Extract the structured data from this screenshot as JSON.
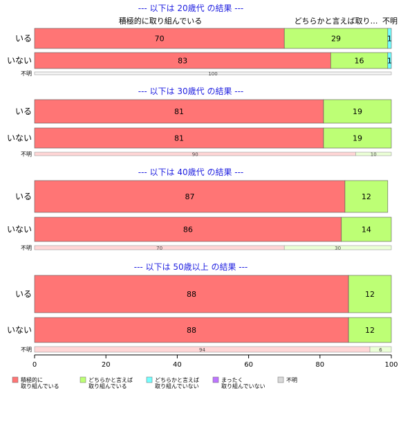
{
  "colors": {
    "積極的に取り組んでいる": "#ff7575",
    "どちらかと言えば取り組んでいる": "#bdff75",
    "どちらかと言えば取り組んでいない": "#75ffff",
    "まったく取り組んでいない": "#bd75ff",
    "不明": "#d9d9d9"
  },
  "header_labels": [
    "積極的に取り組んでいる",
    "どちらかと言えば取り…",
    "不明"
  ],
  "x_ticks": [
    "0",
    "20",
    "40",
    "60",
    "80",
    "100"
  ],
  "legend": [
    {
      "key": "積極的に取り組んでいる",
      "lines": [
        "積極的に",
        "取り組んでいる"
      ]
    },
    {
      "key": "どちらかと言えば取り組んでいる",
      "lines": [
        "どちらかと言えば",
        "取り組んでいる"
      ]
    },
    {
      "key": "どちらかと言えば取り組んでいない",
      "lines": [
        "どちらかと言えば",
        "取り組んでいない"
      ]
    },
    {
      "key": "まったく取り組んでいない",
      "lines": [
        "まったく",
        "取り組んでいない"
      ]
    },
    {
      "key": "不明",
      "lines": [
        "不明"
      ]
    }
  ],
  "chart_data": {
    "type": "bar",
    "orientation": "horizontal",
    "stacked": true,
    "xlim": [
      0,
      100
    ],
    "categories": [
      "積極的に取り組んでいる",
      "どちらかと言えば取り組んでいる",
      "どちらかと言えば取り組んでいない",
      "まったく取り組んでいない",
      "不明"
    ],
    "panels": [
      {
        "title": "--- 以下は 20歳代 の結果 ---",
        "rows": [
          {
            "label": "いる",
            "values": [
              70,
              29,
              1,
              0,
              0
            ]
          },
          {
            "label": "いない",
            "values": [
              83,
              16,
              1,
              0,
              0
            ]
          },
          {
            "label": "不明",
            "values": [
              0,
              0,
              0,
              0,
              100
            ]
          }
        ]
      },
      {
        "title": "--- 以下は 30歳代 の結果 ---",
        "rows": [
          {
            "label": "いる",
            "values": [
              81,
              19,
              0,
              0,
              0
            ]
          },
          {
            "label": "いない",
            "values": [
              81,
              19,
              0,
              0,
              0
            ]
          },
          {
            "label": "不明",
            "values": [
              90,
              10,
              0,
              0,
              0
            ]
          }
        ]
      },
      {
        "title": "--- 以下は 40歳代 の結果 ---",
        "rows": [
          {
            "label": "いる",
            "values": [
              87,
              12,
              0,
              0,
              0
            ]
          },
          {
            "label": "いない",
            "values": [
              86,
              14,
              0,
              0,
              0
            ]
          },
          {
            "label": "不明",
            "values": [
              70,
              30,
              0,
              0,
              0
            ]
          }
        ]
      },
      {
        "title": "--- 以下は 50歳以上 の結果 ---",
        "rows": [
          {
            "label": "いる",
            "values": [
              88,
              12,
              0,
              0,
              0
            ]
          },
          {
            "label": "いない",
            "values": [
              88,
              12,
              0,
              0,
              0
            ]
          },
          {
            "label": "不明",
            "values": [
              94,
              6,
              0,
              0,
              0
            ]
          }
        ]
      }
    ]
  }
}
